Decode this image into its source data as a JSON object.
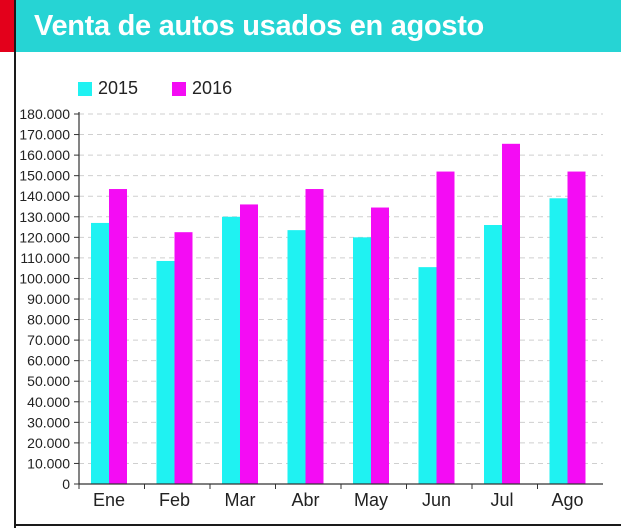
{
  "header": {
    "title": "Venta de autos usados en agosto",
    "accent_color": "#e3001b",
    "bar_color": "#26d4d4"
  },
  "chart_data": {
    "type": "bar",
    "title": "Venta de autos usados en agosto",
    "xlabel": "",
    "ylabel": "",
    "categories": [
      "Ene",
      "Feb",
      "Mar",
      "Abr",
      "May",
      "Jun",
      "Jul",
      "Ago"
    ],
    "series": [
      {
        "name": "2015",
        "color": "#1ff2f2",
        "values": [
          127000,
          108500,
          130000,
          123500,
          120000,
          105500,
          126000,
          139000
        ]
      },
      {
        "name": "2016",
        "color": "#f40cf4",
        "values": [
          143500,
          122500,
          136000,
          143500,
          134500,
          152000,
          165500,
          152000
        ]
      }
    ],
    "ylim": [
      0,
      180000
    ],
    "ytick_step": 10000,
    "ytick_labels": [
      "0",
      "10.000",
      "20.000",
      "30.000",
      "40.000",
      "50.000",
      "60.000",
      "70.000",
      "80.000",
      "90.000",
      "100.000",
      "110.000",
      "120.000",
      "130.000",
      "140.000",
      "150.000",
      "160.000",
      "170.000",
      "180.000"
    ],
    "grid": true,
    "legend_position": "top-left"
  }
}
